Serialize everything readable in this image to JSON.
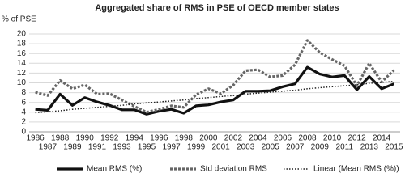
{
  "chart_data": {
    "type": "line",
    "title": "Aggregated share of RMS in PSE of OECD member states",
    "y_label": "% of PSE",
    "categories": [
      "1986",
      "1987",
      "1988",
      "1989",
      "1990",
      "1991",
      "1992",
      "1993",
      "1994",
      "1995",
      "1996",
      "1997",
      "1998",
      "1999",
      "2000",
      "2001",
      "2002",
      "2003",
      "2004",
      "2005",
      "2006",
      "2007",
      "2008",
      "2009",
      "2010",
      "2011",
      "2012",
      "2013",
      "2014",
      "2015"
    ],
    "series": [
      {
        "name": "Mean RMS (%)",
        "color": "#111111",
        "style": "solid",
        "values": [
          4.6,
          4.4,
          7.7,
          5.4,
          7.0,
          6.1,
          5.4,
          4.5,
          4.5,
          3.6,
          4.2,
          4.6,
          3.8,
          5.3,
          5.5,
          6.1,
          6.5,
          8.3,
          8.3,
          8.4,
          9.2,
          9.8,
          13.2,
          11.8,
          11.2,
          11.5,
          8.6,
          11.3,
          8.8,
          9.8
        ]
      },
      {
        "name": "Std deviation RMS",
        "color": "#666666",
        "style": "dashed",
        "values": [
          8.1,
          7.4,
          10.5,
          8.8,
          9.6,
          7.7,
          7.8,
          6.5,
          5.2,
          4.0,
          4.6,
          5.3,
          5.0,
          7.6,
          8.8,
          7.8,
          9.5,
          12.5,
          12.7,
          11.2,
          11.5,
          13.7,
          18.7,
          16.2,
          14.8,
          13.5,
          9.4,
          14.0,
          10.2,
          12.6
        ]
      },
      {
        "name": "Linear (Mean RMS (%))",
        "color": "#222222",
        "style": "dotted",
        "values": [
          3.9,
          4.1,
          4.3,
          4.6,
          4.8,
          5.0,
          5.2,
          5.4,
          5.7,
          5.9,
          6.1,
          6.3,
          6.5,
          6.8,
          7.0,
          7.2,
          7.4,
          7.7,
          7.9,
          8.1,
          8.3,
          8.5,
          8.8,
          9.0,
          9.2,
          9.4,
          9.6,
          9.9,
          10.1,
          10.3
        ]
      }
    ],
    "ylim": [
      0,
      20
    ],
    "yticks": [
      0,
      2,
      4,
      6,
      8,
      10,
      12,
      14,
      16,
      18,
      20
    ],
    "grid": true
  }
}
